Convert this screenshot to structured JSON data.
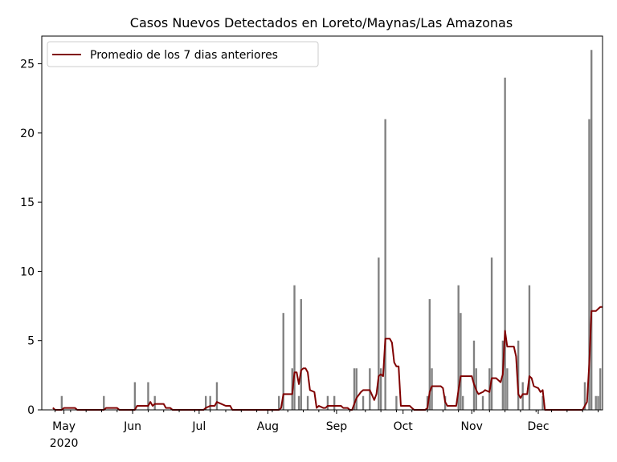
{
  "chart_data": {
    "type": "bar",
    "title": "Casos Nuevos Detectados en Loreto/Maynas/Las Amazonas",
    "xlabel": "",
    "ylabel": "",
    "x_axis": {
      "range": [
        "2020-04-21",
        "2020-12-30"
      ],
      "ticks": [
        {
          "date": "2020-05-01",
          "label": "May",
          "sublabel": "2020"
        },
        {
          "date": "2020-06-01",
          "label": "Jun",
          "sublabel": ""
        },
        {
          "date": "2020-07-01",
          "label": "Jul",
          "sublabel": ""
        },
        {
          "date": "2020-08-01",
          "label": "Aug",
          "sublabel": ""
        },
        {
          "date": "2020-09-01",
          "label": "Sep",
          "sublabel": ""
        },
        {
          "date": "2020-10-01",
          "label": "Oct",
          "sublabel": ""
        },
        {
          "date": "2020-11-01",
          "label": "Nov",
          "sublabel": ""
        },
        {
          "date": "2020-12-01",
          "label": "Dec",
          "sublabel": ""
        }
      ]
    },
    "y_axis": {
      "ylim": [
        0,
        27
      ],
      "ticks": [
        0,
        5,
        10,
        15,
        20,
        25
      ]
    },
    "grid": false,
    "legend": {
      "placement": "top-left"
    },
    "series": [
      {
        "kind": "bar",
        "name": "",
        "color": "#808080",
        "points": [
          [
            "2020-04-30",
            1
          ],
          [
            "2020-05-19",
            1
          ],
          [
            "2020-06-02",
            2
          ],
          [
            "2020-06-08",
            2
          ],
          [
            "2020-06-11",
            1
          ],
          [
            "2020-07-04",
            1
          ],
          [
            "2020-07-06",
            1
          ],
          [
            "2020-07-09",
            2
          ],
          [
            "2020-08-06",
            1
          ],
          [
            "2020-08-08",
            7
          ],
          [
            "2020-08-12",
            3
          ],
          [
            "2020-08-13",
            9
          ],
          [
            "2020-08-15",
            1
          ],
          [
            "2020-08-16",
            8
          ],
          [
            "2020-08-19",
            1
          ],
          [
            "2020-08-28",
            1
          ],
          [
            "2020-08-31",
            1
          ],
          [
            "2020-09-09",
            3
          ],
          [
            "2020-09-10",
            3
          ],
          [
            "2020-09-13",
            1
          ],
          [
            "2020-09-16",
            3
          ],
          [
            "2020-09-20",
            11
          ],
          [
            "2020-09-21",
            3
          ],
          [
            "2020-09-23",
            21
          ],
          [
            "2020-09-28",
            1
          ],
          [
            "2020-10-12",
            1
          ],
          [
            "2020-10-13",
            8
          ],
          [
            "2020-10-14",
            3
          ],
          [
            "2020-10-20",
            1
          ],
          [
            "2020-10-26",
            9
          ],
          [
            "2020-10-27",
            7
          ],
          [
            "2020-10-28",
            1
          ],
          [
            "2020-11-02",
            5
          ],
          [
            "2020-11-03",
            3
          ],
          [
            "2020-11-06",
            1
          ],
          [
            "2020-11-09",
            3
          ],
          [
            "2020-11-10",
            11
          ],
          [
            "2020-11-15",
            5
          ],
          [
            "2020-11-16",
            24
          ],
          [
            "2020-11-17",
            3
          ],
          [
            "2020-11-22",
            5
          ],
          [
            "2020-11-24",
            2
          ],
          [
            "2020-11-27",
            9
          ],
          [
            "2020-12-03",
            1
          ],
          [
            "2020-12-22",
            2
          ],
          [
            "2020-12-24",
            21
          ],
          [
            "2020-12-25",
            26
          ],
          [
            "2020-12-27",
            1
          ],
          [
            "2020-12-28",
            1
          ],
          [
            "2020-12-29",
            3
          ]
        ]
      },
      {
        "kind": "line",
        "name": "Promedio de los 7 dias anteriores",
        "color": "#800000",
        "points": [
          [
            "2020-04-26",
            0.15
          ],
          [
            "2020-04-27",
            0
          ],
          [
            "2020-04-30",
            0
          ],
          [
            "2020-05-01",
            0.14
          ],
          [
            "2020-05-06",
            0.14
          ],
          [
            "2020-05-07",
            0
          ],
          [
            "2020-05-19",
            0
          ],
          [
            "2020-05-20",
            0.14
          ],
          [
            "2020-05-25",
            0.14
          ],
          [
            "2020-05-26",
            0
          ],
          [
            "2020-06-02",
            0
          ],
          [
            "2020-06-03",
            0.29
          ],
          [
            "2020-06-08",
            0.29
          ],
          [
            "2020-06-09",
            0.57
          ],
          [
            "2020-06-10",
            0.29
          ],
          [
            "2020-06-11",
            0.43
          ],
          [
            "2020-06-15",
            0.43
          ],
          [
            "2020-06-16",
            0.14
          ],
          [
            "2020-06-18",
            0.14
          ],
          [
            "2020-06-19",
            0
          ],
          [
            "2020-07-03",
            0
          ],
          [
            "2020-07-04",
            0.14
          ],
          [
            "2020-07-06",
            0.29
          ],
          [
            "2020-07-08",
            0.29
          ],
          [
            "2020-07-09",
            0.57
          ],
          [
            "2020-07-11",
            0.43
          ],
          [
            "2020-07-13",
            0.29
          ],
          [
            "2020-07-15",
            0.29
          ],
          [
            "2020-07-16",
            0
          ],
          [
            "2020-08-06",
            0
          ],
          [
            "2020-08-07",
            0.14
          ],
          [
            "2020-08-08",
            1.14
          ],
          [
            "2020-08-12",
            1.14
          ],
          [
            "2020-08-13",
            2.71
          ],
          [
            "2020-08-14",
            2.71
          ],
          [
            "2020-08-15",
            1.86
          ],
          [
            "2020-08-16",
            2.86
          ],
          [
            "2020-08-17",
            3.0
          ],
          [
            "2020-08-18",
            3.0
          ],
          [
            "2020-08-19",
            2.71
          ],
          [
            "2020-08-20",
            1.43
          ],
          [
            "2020-08-22",
            1.29
          ],
          [
            "2020-08-23",
            0.14
          ],
          [
            "2020-08-24",
            0.29
          ],
          [
            "2020-08-26",
            0.14
          ],
          [
            "2020-08-27",
            0.14
          ],
          [
            "2020-08-28",
            0.29
          ],
          [
            "2020-09-03",
            0.29
          ],
          [
            "2020-09-04",
            0.14
          ],
          [
            "2020-09-06",
            0.14
          ],
          [
            "2020-09-07",
            0
          ],
          [
            "2020-09-08",
            0
          ],
          [
            "2020-09-09",
            0.43
          ],
          [
            "2020-09-10",
            0.86
          ],
          [
            "2020-09-12",
            1.29
          ],
          [
            "2020-09-13",
            1.43
          ],
          [
            "2020-09-16",
            1.43
          ],
          [
            "2020-09-18",
            0.71
          ],
          [
            "2020-09-19",
            1.14
          ],
          [
            "2020-09-20",
            2.43
          ],
          [
            "2020-09-21",
            2.57
          ],
          [
            "2020-09-22",
            2.43
          ],
          [
            "2020-09-23",
            5.14
          ],
          [
            "2020-09-25",
            5.14
          ],
          [
            "2020-09-26",
            4.86
          ],
          [
            "2020-09-27",
            3.43
          ],
          [
            "2020-09-28",
            3.14
          ],
          [
            "2020-09-29",
            3.14
          ],
          [
            "2020-09-30",
            0.29
          ],
          [
            "2020-10-04",
            0.29
          ],
          [
            "2020-10-05",
            0.14
          ],
          [
            "2020-10-06",
            0
          ],
          [
            "2020-10-11",
            0
          ],
          [
            "2020-10-12",
            0.14
          ],
          [
            "2020-10-13",
            1.29
          ],
          [
            "2020-10-14",
            1.71
          ],
          [
            "2020-10-18",
            1.71
          ],
          [
            "2020-10-19",
            1.57
          ],
          [
            "2020-10-20",
            0.57
          ],
          [
            "2020-10-21",
            0.29
          ],
          [
            "2020-10-25",
            0.29
          ],
          [
            "2020-10-26",
            1.43
          ],
          [
            "2020-10-27",
            2.43
          ],
          [
            "2020-11-01",
            2.43
          ],
          [
            "2020-11-02",
            1.86
          ],
          [
            "2020-11-03",
            1.43
          ],
          [
            "2020-11-04",
            1.14
          ],
          [
            "2020-11-06",
            1.29
          ],
          [
            "2020-11-07",
            1.43
          ],
          [
            "2020-11-09",
            1.29
          ],
          [
            "2020-11-10",
            2.29
          ],
          [
            "2020-11-12",
            2.29
          ],
          [
            "2020-11-14",
            2.0
          ],
          [
            "2020-11-15",
            2.57
          ],
          [
            "2020-11-16",
            5.71
          ],
          [
            "2020-11-17",
            4.57
          ],
          [
            "2020-11-20",
            4.57
          ],
          [
            "2020-11-21",
            3.86
          ],
          [
            "2020-11-22",
            1.14
          ],
          [
            "2020-11-23",
            0.86
          ],
          [
            "2020-11-24",
            1.14
          ],
          [
            "2020-11-26",
            1.14
          ],
          [
            "2020-11-27",
            2.43
          ],
          [
            "2020-11-28",
            2.29
          ],
          [
            "2020-11-29",
            1.71
          ],
          [
            "2020-12-01",
            1.57
          ],
          [
            "2020-12-02",
            1.29
          ],
          [
            "2020-12-03",
            1.43
          ],
          [
            "2020-12-04",
            0
          ],
          [
            "2020-12-21",
            0
          ],
          [
            "2020-12-22",
            0.29
          ],
          [
            "2020-12-23",
            0.57
          ],
          [
            "2020-12-24",
            3.29
          ],
          [
            "2020-12-25",
            7.14
          ],
          [
            "2020-12-27",
            7.14
          ],
          [
            "2020-12-28",
            7.29
          ],
          [
            "2020-12-29",
            7.43
          ],
          [
            "2020-12-30",
            7.43
          ]
        ]
      }
    ]
  }
}
